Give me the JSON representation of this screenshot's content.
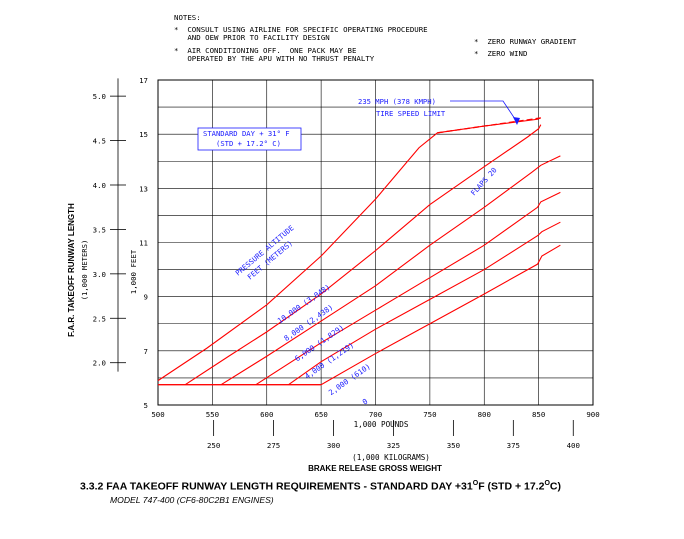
{
  "notes": {
    "heading": "NOTES:",
    "left": [
      "*  CONSULT USING AIRLINE FOR SPECIFIC OPERATING PROCEDURE",
      "   AND OEW PRIOR TO FACILITY DESIGN",
      "*  AIR CONDITIONING OFF.  ONE PACK MAY BE",
      "   OPERATED BY THE APU WITH NO THRUST PENALTY"
    ],
    "right": [
      "*  ZERO RUNWAY GRADIENT",
      "*  ZERO WIND"
    ]
  },
  "annotations": {
    "standard_day": [
      "STANDARD DAY + 31° F",
      "(STD + 17.2° C)"
    ],
    "tire_limit": [
      "235 MPH (378 KMPH)",
      "TIRE SPEED LIMIT"
    ],
    "flaps": "FLAPS 20",
    "pressure_altitude": [
      "PRESSURE ALTITUDE",
      "FEET   (METERS)"
    ]
  },
  "caption": {
    "prefix": "3.3.2  FAA TAKEOFF RUNWAY LENGTH REQUIREMENTS - STANDARD DAY +31",
    "deg1": "O",
    "middle": "F (STD +  17.2",
    "deg2": "O",
    "suffix": "C)",
    "subtitle": "MODEL  747-400 (CF6-80C2B1 ENGINES)"
  },
  "chart_data": {
    "type": "line",
    "title": "",
    "xlabel": "1,000 POUNDS",
    "xlabel_secondary": "(1,000  KILOGRAMS)",
    "xlabel_bottom": "BRAKE RELEASE GROSS WEIGHT",
    "ylabel": "1,000 FEET",
    "ylabel_secondary": "F.A.R. TAKEOFF RUNWAY LENGTH",
    "ylabel_secondary_units": "(1,000  METERS)",
    "xlim": [
      500,
      900
    ],
    "ylim": [
      5,
      17
    ],
    "x_ticks": [
      "500",
      "550",
      "600",
      "650",
      "700",
      "750",
      "800",
      "850",
      "900"
    ],
    "y_ticks": [
      "5",
      "7",
      "9",
      "11",
      "13",
      "15",
      "17"
    ],
    "kg_ticks": [
      "250",
      "275",
      "300",
      "325",
      "350",
      "375",
      "400"
    ],
    "meter_ticks": [
      "2.0",
      "2.5",
      "3.0",
      "3.5",
      "4.0",
      "4.5",
      "5.0"
    ],
    "grid": true,
    "legend": "none",
    "color": "#ff0000",
    "series": [
      {
        "name": "10,000  (3,048)",
        "x": [
          500,
          545,
          600,
          650,
          700,
          740,
          757,
          800,
          849,
          852
        ],
        "y": [
          5.9,
          7.1,
          8.7,
          10.5,
          12.6,
          14.5,
          15.05,
          15.3,
          15.55,
          15.6
        ]
      },
      {
        "name": "8,000  (2,438)",
        "x": [
          525,
          565,
          600,
          650,
          700,
          750,
          800,
          840,
          850,
          852
        ],
        "y": [
          5.75,
          6.8,
          7.7,
          9.1,
          10.7,
          12.4,
          13.8,
          14.9,
          15.2,
          15.35
        ]
      },
      {
        "name": "6,000  (1,829)",
        "x": [
          558,
          600,
          650,
          700,
          750,
          800,
          844,
          852,
          870
        ],
        "y": [
          5.75,
          6.8,
          8.1,
          9.4,
          10.9,
          12.3,
          13.6,
          13.85,
          14.2
        ]
      },
      {
        "name": "4,000  (1,219)",
        "x": [
          590,
          650,
          700,
          750,
          800,
          849,
          852,
          870
        ],
        "y": [
          5.75,
          7.3,
          8.5,
          9.7,
          10.9,
          12.3,
          12.5,
          12.85
        ]
      },
      {
        "name": "2,000  (610)",
        "x": [
          620,
          650,
          700,
          750,
          800,
          849,
          853,
          870
        ],
        "y": [
          5.75,
          6.6,
          7.8,
          8.9,
          10.0,
          11.25,
          11.4,
          11.75
        ]
      },
      {
        "name": "0",
        "x": [
          500,
          650,
          700,
          750,
          800,
          849,
          853,
          870
        ],
        "y": [
          5.75,
          5.75,
          6.9,
          8.0,
          9.1,
          10.2,
          10.5,
          10.9
        ]
      }
    ],
    "base_line": {
      "x": [
        500,
        650
      ],
      "y": [
        5.75,
        5.75
      ]
    },
    "tire_speed_limit": {
      "x": [
        757,
        852
      ],
      "y": [
        15.05,
        15.6
      ]
    }
  }
}
